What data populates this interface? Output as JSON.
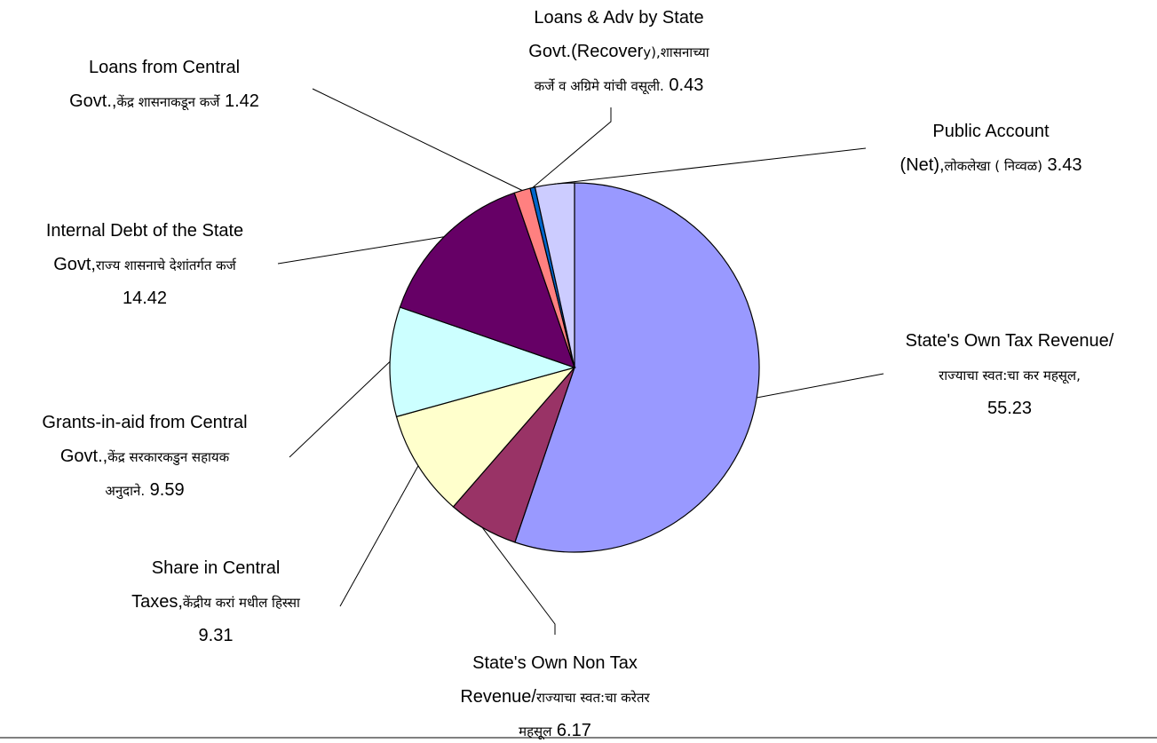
{
  "chart_data": {
    "type": "pie",
    "start_angle_deg": 0,
    "direction": "clockwise",
    "slices": [
      {
        "name": "State's Own Tax Revenue/ राज्याचा स्वत:चा कर महसूल,",
        "value": 55.23,
        "color": "#9999ff",
        "label_lines": [
          [
            "State's Own Tax Revenue/"
          ],
          [
            "राज्याचा स्वत:चा कर महसूल,"
          ],
          [
            "55.23"
          ]
        ]
      },
      {
        "name": "State's Own Non Tax Revenue/राज्याचा स्वत:चा करेतर महसूल",
        "value": 6.17,
        "color": "#993366",
        "label_lines": [
          [
            "State's Own Non Tax"
          ],
          [
            "Revenue/",
            "राज्याचा स्वत:चा करेतर"
          ],
          [
            "महसूल",
            " 6.17"
          ]
        ]
      },
      {
        "name": "Share in Central Taxes,केंद्रीय करां मधील हिस्सा",
        "value": 9.31,
        "color": "#ffffcc",
        "label_lines": [
          [
            "Share in Central"
          ],
          [
            "Taxes,",
            "केंद्रीय करां मधील हिस्सा"
          ],
          [
            "9.31"
          ]
        ]
      },
      {
        "name": "Grants-in-aid from Central Govt.,केंद्र सरकारकडुन सहायक अनुदाने.",
        "value": 9.59,
        "color": "#ccffff",
        "label_lines": [
          [
            "Grants-in-aid from Central"
          ],
          [
            "Govt.,",
            "केंद्र सरकारकडुन सहायक"
          ],
          [
            "अनुदाने.",
            " 9.59"
          ]
        ]
      },
      {
        "name": "Internal Debt of the State Govt,राज्य शासनाचे देशांतर्गत कर्ज",
        "value": 14.42,
        "color": "#660066",
        "label_lines": [
          [
            "Internal Debt of the State"
          ],
          [
            "Govt,",
            "राज्य शासनाचे देशांतर्गत कर्ज"
          ],
          [
            "14.42"
          ]
        ]
      },
      {
        "name": "Loans from Central Govt.,केंद्र शासनाकडून कर्जे",
        "value": 1.42,
        "color": "#ff8080",
        "label_lines": [
          [
            "Loans from Central"
          ],
          [
            "Govt.,",
            "केंद्र शासनाकडून कर्जे",
            " 1.42"
          ]
        ]
      },
      {
        "name": "Loans & Adv by State Govt.(Recovery),शासनाच्या कर्जे व अग्रिमे यांची वसूली.",
        "value": 0.43,
        "color": "#0066cc",
        "label_lines": [
          [
            "Loans & Adv by State"
          ],
          [
            "Govt.(Recover",
            "y),शासनाच्या"
          ],
          [
            "कर्जे व अग्रिमे यांची वसूली.",
            " 0.43"
          ]
        ]
      },
      {
        "name": "Public Account (Net),लोकलेखा ( निव्वळ)",
        "value": 3.43,
        "color": "#ccccff",
        "label_lines": [
          [
            "Public Account"
          ],
          [
            "(Net),",
            "लोकलेखा ( निव्वळ)",
            " 3.43"
          ]
        ]
      }
    ]
  }
}
